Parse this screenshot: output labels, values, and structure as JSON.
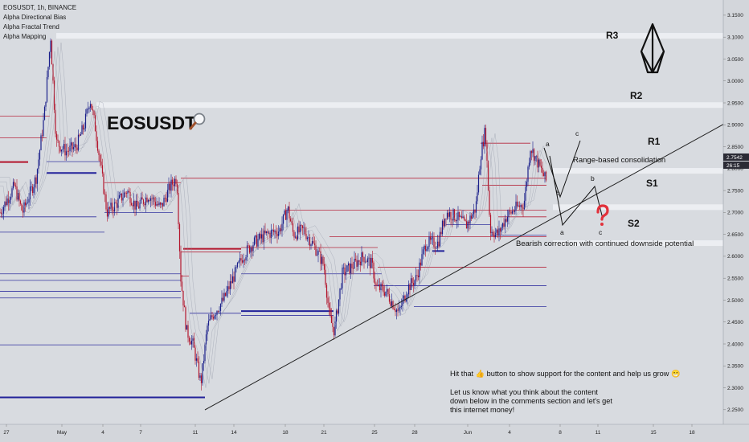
{
  "header": {
    "symbol_line": "EOSUSDT, 1h, BINANCE",
    "indicators": [
      "Alpha Directional Bias",
      "Alpha Fractal Trend",
      "Alpha Mapping"
    ]
  },
  "chart_title": "EOSUSDT",
  "icons": {
    "title_icon": "magnifier-icon",
    "logo": "eos-logo-icon",
    "question": "question-mark-icon",
    "thumb": "thumbs-up-icon",
    "emoji": "smiling-face-icon"
  },
  "colors": {
    "background": "#d8dbe0",
    "up_candle": "#1a1f8a",
    "down_candle": "#b3152c",
    "level_red": "#b3152c",
    "level_blue": "#22229a",
    "zone": "#eceef2"
  },
  "annotations": {
    "consolidation": "Range-based consolidation",
    "bearish": "Bearish correction with continued downside potential",
    "note_lines": [
      "Hit that 👍 button to show support for the content and help us grow 😁",
      "",
      "Let us know what you think about the content",
      "down below in the comments section and let's get",
      "this internet money!"
    ]
  },
  "chart_data": {
    "type": "candlestick",
    "title": "EOSUSDT",
    "symbol": "EOSUSDT",
    "timeframe": "1h",
    "exchange": "BINANCE",
    "ylim": [
      2.235,
      3.17
    ],
    "y_ticks": [
      "3.1500",
      "3.1000",
      "3.0500",
      "3.0000",
      "2.9500",
      "2.9000",
      "2.8500",
      "2.8000",
      "2.7500",
      "2.7000",
      "2.6500",
      "2.6000",
      "2.5500",
      "2.5000",
      "2.4500",
      "2.4000",
      "2.3500",
      "2.3000",
      "2.2500"
    ],
    "y_tick_values": [
      3.15,
      3.1,
      3.05,
      3.0,
      2.95,
      2.9,
      2.85,
      2.8,
      2.75,
      2.7,
      2.65,
      2.6,
      2.55,
      2.5,
      2.45,
      2.4,
      2.35,
      2.3,
      2.25
    ],
    "current_price_label": "2.7542",
    "countdown_label": "26:15",
    "current_price": 2.7542,
    "x_ticks": [
      "27",
      "May",
      "4",
      "7",
      "11",
      "14",
      "18",
      "21",
      "25",
      "28",
      "Jun",
      "4",
      "8",
      "11",
      "15",
      "18"
    ],
    "levels": [
      {
        "name": "R3",
        "value": 3.103
      },
      {
        "name": "R2",
        "value": 2.945
      },
      {
        "name": "R1",
        "value": 2.795
      },
      {
        "name": "S1",
        "value": 2.712
      },
      {
        "name": "S2",
        "value": 2.63
      }
    ],
    "wave_labels": [
      "a",
      "b",
      "c",
      "a",
      "b",
      "c"
    ],
    "path_anchors": [
      {
        "t": 0,
        "p": 2.7
      },
      {
        "t": 18,
        "p": 2.76
      },
      {
        "t": 28,
        "p": 2.7
      },
      {
        "t": 45,
        "p": 2.78
      },
      {
        "t": 55,
        "p": 2.92
      },
      {
        "t": 63,
        "p": 3.1
      },
      {
        "t": 70,
        "p": 2.86
      },
      {
        "t": 82,
        "p": 2.84
      },
      {
        "t": 95,
        "p": 2.85
      },
      {
        "t": 105,
        "p": 2.9
      },
      {
        "t": 112,
        "p": 2.96
      },
      {
        "t": 118,
        "p": 2.9
      },
      {
        "t": 125,
        "p": 2.81
      },
      {
        "t": 133,
        "p": 2.7
      },
      {
        "t": 145,
        "p": 2.72
      },
      {
        "t": 158,
        "p": 2.75
      },
      {
        "t": 170,
        "p": 2.71
      },
      {
        "t": 185,
        "p": 2.74
      },
      {
        "t": 200,
        "p": 2.71
      },
      {
        "t": 212,
        "p": 2.76
      },
      {
        "t": 220,
        "p": 2.78
      },
      {
        "t": 225,
        "p": 2.55
      },
      {
        "t": 232,
        "p": 2.43
      },
      {
        "t": 240,
        "p": 2.4
      },
      {
        "t": 250,
        "p": 2.31
      },
      {
        "t": 258,
        "p": 2.44
      },
      {
        "t": 266,
        "p": 2.47
      },
      {
        "t": 278,
        "p": 2.5
      },
      {
        "t": 290,
        "p": 2.55
      },
      {
        "t": 302,
        "p": 2.6
      },
      {
        "t": 315,
        "p": 2.63
      },
      {
        "t": 332,
        "p": 2.65
      },
      {
        "t": 348,
        "p": 2.66
      },
      {
        "t": 358,
        "p": 2.71
      },
      {
        "t": 365,
        "p": 2.65
      },
      {
        "t": 378,
        "p": 2.66
      },
      {
        "t": 392,
        "p": 2.62
      },
      {
        "t": 403,
        "p": 2.58
      },
      {
        "t": 410,
        "p": 2.46
      },
      {
        "t": 416,
        "p": 2.43
      },
      {
        "t": 426,
        "p": 2.56
      },
      {
        "t": 440,
        "p": 2.58
      },
      {
        "t": 452,
        "p": 2.6
      },
      {
        "t": 463,
        "p": 2.58
      },
      {
        "t": 468,
        "p": 2.53
      },
      {
        "t": 480,
        "p": 2.52
      },
      {
        "t": 496,
        "p": 2.47
      },
      {
        "t": 508,
        "p": 2.53
      },
      {
        "t": 518,
        "p": 2.55
      },
      {
        "t": 530,
        "p": 2.63
      },
      {
        "t": 545,
        "p": 2.63
      },
      {
        "t": 555,
        "p": 2.7
      },
      {
        "t": 568,
        "p": 2.69
      },
      {
        "t": 580,
        "p": 2.67
      },
      {
        "t": 592,
        "p": 2.71
      },
      {
        "t": 598,
        "p": 2.83
      },
      {
        "t": 604,
        "p": 2.89
      },
      {
        "t": 610,
        "p": 2.66
      },
      {
        "t": 620,
        "p": 2.65
      },
      {
        "t": 630,
        "p": 2.69
      },
      {
        "t": 642,
        "p": 2.71
      },
      {
        "t": 652,
        "p": 2.72
      },
      {
        "t": 660,
        "p": 2.85
      },
      {
        "t": 670,
        "p": 2.81
      },
      {
        "t": 680,
        "p": 2.77
      }
    ]
  }
}
